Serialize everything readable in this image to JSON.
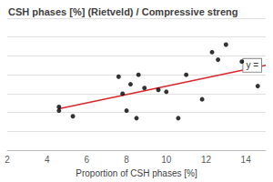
{
  "chart_data": {
    "type": "scatter",
    "title": "CSH phases [%] (Rietveld) / Compressive streng",
    "x_label": "Proportion of CSH phases [%]",
    "annotation": "y =",
    "xlim": [
      2,
      15
    ],
    "xticks": [
      2,
      4,
      6,
      8,
      10,
      12,
      14
    ],
    "ylim": [
      0,
      7
    ],
    "yticks": [
      0,
      1,
      2,
      3,
      4,
      5,
      6,
      7
    ],
    "tick_labels": "x",
    "grid": true,
    "series": [
      {
        "type": "scatter",
        "color": "#000000",
        "marker": "circle",
        "values": [
          [
            4.6,
            2.3
          ],
          [
            4.6,
            2.1
          ],
          [
            5.3,
            1.8
          ],
          [
            7.6,
            3.9
          ],
          [
            7.8,
            3.0
          ],
          [
            8.0,
            2.1
          ],
          [
            8.2,
            3.5
          ],
          [
            8.5,
            1.7
          ],
          [
            8.6,
            4.0
          ],
          [
            8.9,
            3.3
          ],
          [
            9.6,
            3.2
          ],
          [
            10.0,
            3.1
          ],
          [
            10.6,
            1.7
          ],
          [
            11.0,
            4.0
          ],
          [
            11.8,
            2.7
          ],
          [
            12.3,
            5.2
          ],
          [
            12.6,
            4.8
          ],
          [
            13.0,
            5.6
          ],
          [
            13.8,
            4.7
          ],
          [
            14.6,
            3.4
          ]
        ]
      },
      {
        "type": "line",
        "color": "#d9262b",
        "line_style": "solid",
        "values": [
          [
            4.6,
            2.2
          ],
          [
            15,
            4.5
          ]
        ]
      }
    ]
  }
}
